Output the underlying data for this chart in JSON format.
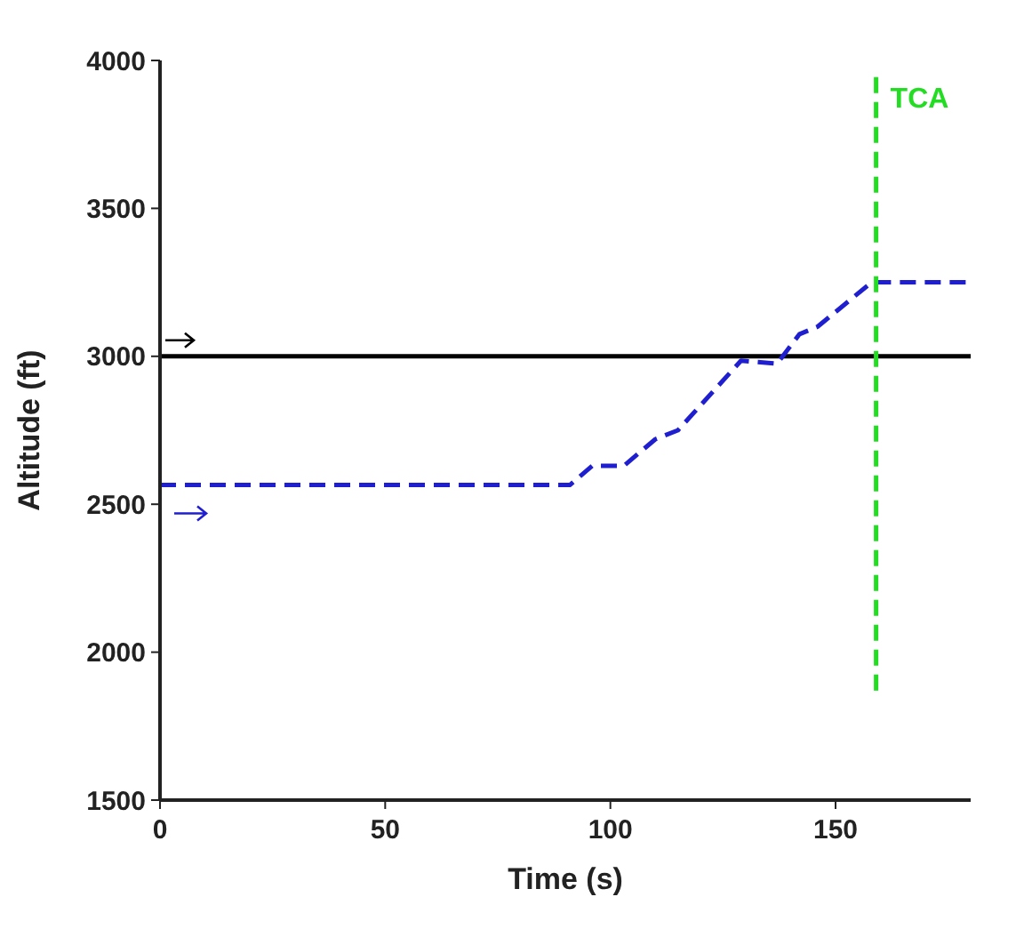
{
  "chart_data": {
    "type": "line",
    "xlabel": "Time (s)",
    "ylabel": "Altitude (ft)",
    "xlim": [
      0,
      180
    ],
    "xticks": [
      0,
      50,
      100,
      150
    ],
    "ylim": [
      1500,
      4000
    ],
    "yticks": [
      1500,
      2000,
      2500,
      3000,
      3500,
      4000
    ],
    "marker": "none",
    "series": [
      {
        "color": "#000000",
        "line_style": "solid",
        "x": [
          0,
          180
        ],
        "values": [
          3000,
          3000
        ]
      },
      {
        "color": "#1f1fd0",
        "line_style": "dashed",
        "x": [
          0,
          91,
          96,
          103,
          110,
          115,
          129,
          137,
          142,
          146,
          158,
          179
        ],
        "values": [
          2565,
          2565,
          2630,
          2630,
          2720,
          2750,
          2985,
          2975,
          3075,
          3100,
          3250,
          3250
        ]
      },
      {
        "color": "#22dd22",
        "line_style": "dashed",
        "x": [
          159,
          159
        ],
        "values": [
          1870,
          3950
        ]
      }
    ],
    "annotations": [
      "TCA"
    ]
  }
}
